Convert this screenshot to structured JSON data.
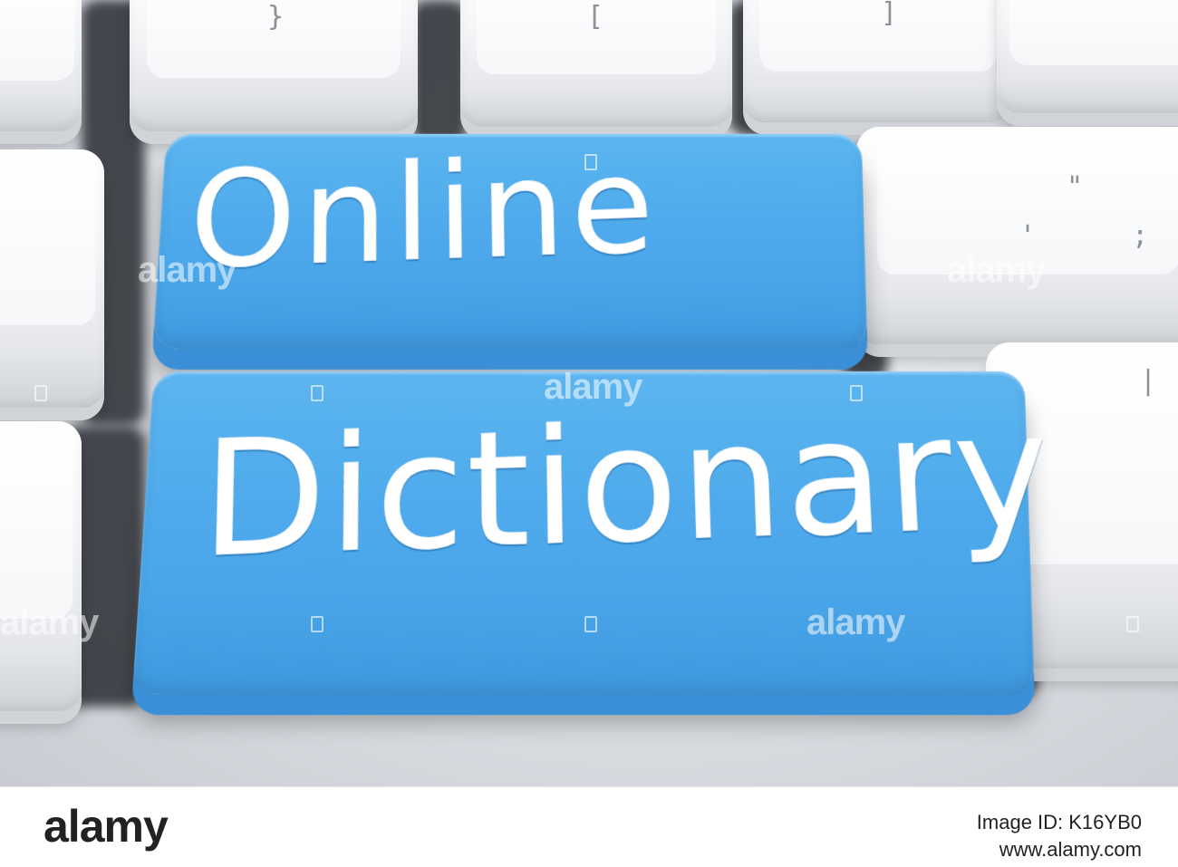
{
  "keys": {
    "online_label": "Online",
    "dictionary_label": "Dictionary",
    "legends": {
      "brace": "}",
      "bracket_open": "[",
      "bracket_close": "]",
      "quote": "\"",
      "apostrophe": "' ;",
      "pipe": "|"
    }
  },
  "watermark": {
    "text": "alamy"
  },
  "footer": {
    "logo": "alamy",
    "image_id": "Image ID: K16YB0",
    "site": "www.alamy.com"
  },
  "colors": {
    "key_blue": "#4fabec",
    "key_white": "#f3f4f6",
    "text_white": "#ffffff"
  }
}
